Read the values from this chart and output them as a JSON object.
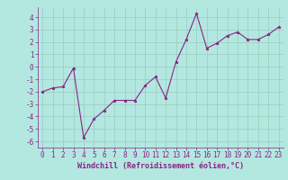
{
  "x": [
    0,
    1,
    2,
    3,
    4,
    5,
    6,
    7,
    8,
    9,
    10,
    11,
    12,
    13,
    14,
    15,
    16,
    17,
    18,
    19,
    20,
    21,
    22,
    23
  ],
  "y": [
    -2.0,
    -1.7,
    -1.6,
    -0.1,
    -5.7,
    -4.2,
    -3.5,
    -2.7,
    -2.7,
    -2.7,
    -1.5,
    -0.8,
    -2.5,
    0.4,
    2.2,
    4.3,
    1.5,
    1.9,
    2.5,
    2.8,
    2.2,
    2.2,
    2.6,
    3.2
  ],
  "line_color": "#882288",
  "marker": "*",
  "bg_color": "#b3e8e0",
  "grid_color": "#99ccbb",
  "xlabel": "Windchill (Refroidissement éolien,°C)",
  "ylim": [
    -6.5,
    4.8
  ],
  "xlim": [
    -0.5,
    23.5
  ],
  "yticks": [
    -6,
    -5,
    -4,
    -3,
    -2,
    -1,
    0,
    1,
    2,
    3,
    4
  ],
  "xticks": [
    0,
    1,
    2,
    3,
    4,
    5,
    6,
    7,
    8,
    9,
    10,
    11,
    12,
    13,
    14,
    15,
    16,
    17,
    18,
    19,
    20,
    21,
    22,
    23
  ],
  "tick_fontsize": 5.5,
  "xlabel_fontsize": 6.0,
  "marker_size": 2.5,
  "linewidth": 0.8
}
